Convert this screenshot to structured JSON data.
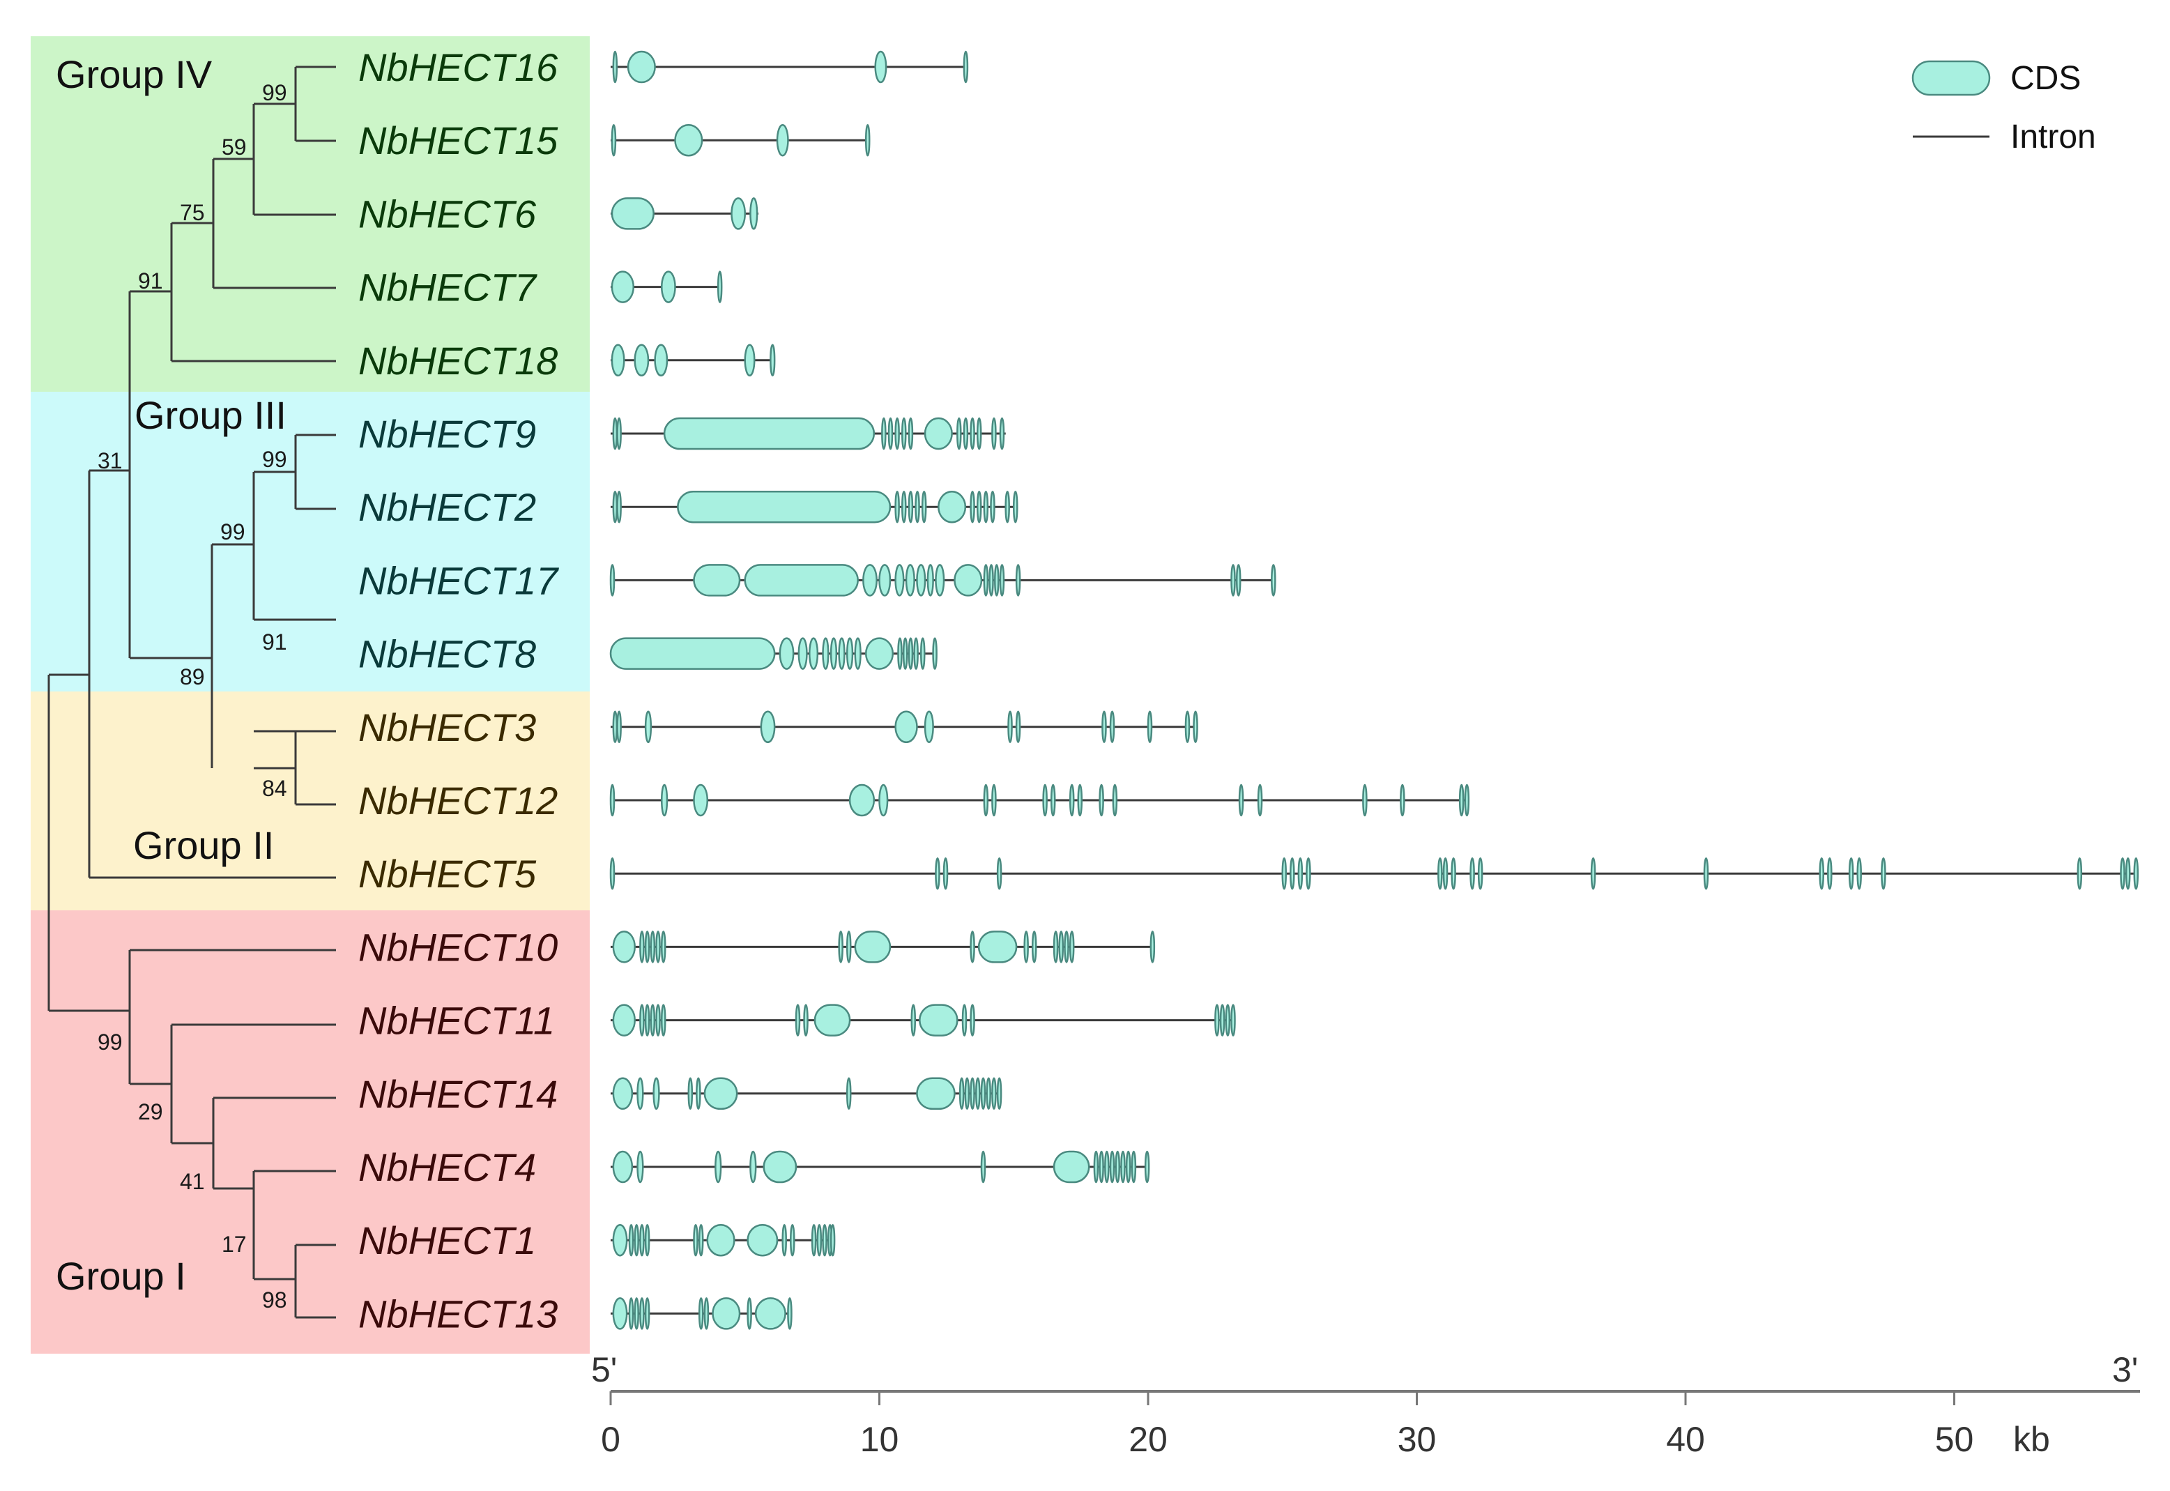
{
  "groups": [
    {
      "label": "Group IV",
      "color": "#ccf5c8",
      "text_color": "#0a3a0a"
    },
    {
      "label": "Group III",
      "color": "#ccfafa",
      "text_color": "#0a3a3a"
    },
    {
      "label": "Group II",
      "color": "#fdf2cc",
      "text_color": "#3a2a00"
    },
    {
      "label": "Group I",
      "color": "#fcc8c8",
      "text_color": "#3a0a0a"
    }
  ],
  "genes": [
    {
      "name": "NbHECT16",
      "group": 0,
      "length": 13.3,
      "cds": [
        [
          0.1,
          0.15
        ],
        [
          0.65,
          1.65
        ],
        [
          9.85,
          10.25
        ],
        [
          13.15,
          13.25
        ]
      ]
    },
    {
      "name": "NbHECT15",
      "group": 0,
      "length": 9.6,
      "cds": [
        [
          0.05,
          0.15
        ],
        [
          2.4,
          3.4
        ],
        [
          6.2,
          6.6
        ],
        [
          9.5,
          9.6
        ]
      ]
    },
    {
      "name": "NbHECT6",
      "group": 0,
      "length": 5.5,
      "cds": [
        [
          0.05,
          1.6
        ],
        [
          4.5,
          5.0
        ],
        [
          5.2,
          5.45
        ]
      ]
    },
    {
      "name": "NbHECT7",
      "group": 0,
      "length": 4.1,
      "cds": [
        [
          0.05,
          0.85
        ],
        [
          1.9,
          2.4
        ],
        [
          4.0,
          4.1
        ]
      ]
    },
    {
      "name": "NbHECT18",
      "group": 0,
      "length": 6.1,
      "cds": [
        [
          0.05,
          0.5
        ],
        [
          0.9,
          1.4
        ],
        [
          1.65,
          2.1
        ],
        [
          5.0,
          5.35
        ],
        [
          5.95,
          6.1
        ]
      ]
    },
    {
      "name": "NbHECT9",
      "group": 1,
      "length": 14.7,
      "cds": [
        [
          0.1,
          0.2
        ],
        [
          0.25,
          0.35
        ],
        [
          2.0,
          9.8
        ],
        [
          10.1,
          10.2
        ],
        [
          10.35,
          10.45
        ],
        [
          10.6,
          10.7
        ],
        [
          10.85,
          10.95
        ],
        [
          11.1,
          11.2
        ],
        [
          11.7,
          12.7
        ],
        [
          12.9,
          13.0
        ],
        [
          13.15,
          13.25
        ],
        [
          13.4,
          13.5
        ],
        [
          13.65,
          13.75
        ],
        [
          14.2,
          14.3
        ],
        [
          14.5,
          14.6
        ]
      ]
    },
    {
      "name": "NbHECT2",
      "group": 1,
      "length": 15.1,
      "cds": [
        [
          0.1,
          0.2
        ],
        [
          0.25,
          0.35
        ],
        [
          2.5,
          10.4
        ],
        [
          10.6,
          10.7
        ],
        [
          10.85,
          10.95
        ],
        [
          11.1,
          11.2
        ],
        [
          11.35,
          11.45
        ],
        [
          11.6,
          11.7
        ],
        [
          12.2,
          13.2
        ],
        [
          13.4,
          13.5
        ],
        [
          13.65,
          13.75
        ],
        [
          13.9,
          14.0
        ],
        [
          14.15,
          14.25
        ],
        [
          14.7,
          14.8
        ],
        [
          15.0,
          15.1
        ]
      ]
    },
    {
      "name": "NbHECT17",
      "group": 1,
      "length": 24.7,
      "cds": [
        [
          0.0,
          0.1
        ],
        [
          3.1,
          4.8
        ],
        [
          5.0,
          9.2
        ],
        [
          9.4,
          9.9
        ],
        [
          10.0,
          10.4
        ],
        [
          10.6,
          10.9
        ],
        [
          11.0,
          11.3
        ],
        [
          11.4,
          11.7
        ],
        [
          11.8,
          12.0
        ],
        [
          12.1,
          12.4
        ],
        [
          12.8,
          13.8
        ],
        [
          13.9,
          14.0
        ],
        [
          14.1,
          14.2
        ],
        [
          14.3,
          14.4
        ],
        [
          14.5,
          14.6
        ],
        [
          15.1,
          15.2
        ],
        [
          23.1,
          23.2
        ],
        [
          23.3,
          23.4
        ],
        [
          24.6,
          24.7
        ]
      ]
    },
    {
      "name": "NbHECT8",
      "group": 1,
      "length": 12.1,
      "cds": [
        [
          0.0,
          6.1
        ],
        [
          6.3,
          6.8
        ],
        [
          7.0,
          7.3
        ],
        [
          7.4,
          7.7
        ],
        [
          7.9,
          8.1
        ],
        [
          8.2,
          8.4
        ],
        [
          8.5,
          8.7
        ],
        [
          8.8,
          9.0
        ],
        [
          9.1,
          9.3
        ],
        [
          9.5,
          10.5
        ],
        [
          10.7,
          10.8
        ],
        [
          10.9,
          11.0
        ],
        [
          11.1,
          11.2
        ],
        [
          11.3,
          11.4
        ],
        [
          11.55,
          11.65
        ],
        [
          12.0,
          12.1
        ]
      ]
    },
    {
      "name": "NbHECT3",
      "group": 2,
      "length": 21.8,
      "cds": [
        [
          0.1,
          0.2
        ],
        [
          0.25,
          0.35
        ],
        [
          1.3,
          1.5
        ],
        [
          5.6,
          6.1
        ],
        [
          10.6,
          11.4
        ],
        [
          11.7,
          12.0
        ],
        [
          14.8,
          14.9
        ],
        [
          15.1,
          15.2
        ],
        [
          18.3,
          18.4
        ],
        [
          18.6,
          18.7
        ],
        [
          20.0,
          20.1
        ],
        [
          21.4,
          21.5
        ],
        [
          21.7,
          21.8
        ]
      ]
    },
    {
      "name": "NbHECT12",
      "group": 2,
      "length": 31.9,
      "cds": [
        [
          0.0,
          0.1
        ],
        [
          1.9,
          2.1
        ],
        [
          3.1,
          3.6
        ],
        [
          8.9,
          9.8
        ],
        [
          10.0,
          10.3
        ],
        [
          13.9,
          14.0
        ],
        [
          14.2,
          14.3
        ],
        [
          16.1,
          16.2
        ],
        [
          16.4,
          16.5
        ],
        [
          17.1,
          17.2
        ],
        [
          17.4,
          17.5
        ],
        [
          18.2,
          18.3
        ],
        [
          18.7,
          18.8
        ],
        [
          23.4,
          23.5
        ],
        [
          24.1,
          24.2
        ],
        [
          28.0,
          28.1
        ],
        [
          29.4,
          29.5
        ],
        [
          31.6,
          31.7
        ],
        [
          31.8,
          31.9
        ]
      ]
    },
    {
      "name": "NbHECT5",
      "group": 2,
      "length": 56.8,
      "cds": [
        [
          0.0,
          0.1
        ],
        [
          12.1,
          12.2
        ],
        [
          12.4,
          12.5
        ],
        [
          14.4,
          14.5
        ],
        [
          25.0,
          25.1
        ],
        [
          25.3,
          25.4
        ],
        [
          25.6,
          25.7
        ],
        [
          25.9,
          26.0
        ],
        [
          30.8,
          30.9
        ],
        [
          31.0,
          31.1
        ],
        [
          31.3,
          31.4
        ],
        [
          32.0,
          32.1
        ],
        [
          32.3,
          32.4
        ],
        [
          36.5,
          36.6
        ],
        [
          40.7,
          40.8
        ],
        [
          45.0,
          45.1
        ],
        [
          45.3,
          45.4
        ],
        [
          46.1,
          46.2
        ],
        [
          46.4,
          46.5
        ],
        [
          47.3,
          47.4
        ],
        [
          54.6,
          54.7
        ],
        [
          56.2,
          56.3
        ],
        [
          56.4,
          56.5
        ],
        [
          56.7,
          56.8
        ]
      ]
    },
    {
      "name": "NbHECT10",
      "group": 3,
      "length": 20.2,
      "cds": [
        [
          0.1,
          0.9
        ],
        [
          1.1,
          1.2
        ],
        [
          1.3,
          1.4
        ],
        [
          1.5,
          1.6
        ],
        [
          1.7,
          1.8
        ],
        [
          1.9,
          2.0
        ],
        [
          8.5,
          8.6
        ],
        [
          8.8,
          8.9
        ],
        [
          9.1,
          10.4
        ],
        [
          13.4,
          13.5
        ],
        [
          13.7,
          15.1
        ],
        [
          15.4,
          15.5
        ],
        [
          15.7,
          15.8
        ],
        [
          16.5,
          16.6
        ],
        [
          16.7,
          16.8
        ],
        [
          16.9,
          17.0
        ],
        [
          17.1,
          17.2
        ],
        [
          20.1,
          20.2
        ]
      ]
    },
    {
      "name": "NbHECT11",
      "group": 3,
      "length": 23.2,
      "cds": [
        [
          0.1,
          0.9
        ],
        [
          1.1,
          1.2
        ],
        [
          1.3,
          1.4
        ],
        [
          1.5,
          1.6
        ],
        [
          1.7,
          1.8
        ],
        [
          1.9,
          2.0
        ],
        [
          6.9,
          7.0
        ],
        [
          7.2,
          7.3
        ],
        [
          7.6,
          8.9
        ],
        [
          11.2,
          11.3
        ],
        [
          11.5,
          12.9
        ],
        [
          13.1,
          13.2
        ],
        [
          13.4,
          13.5
        ],
        [
          22.5,
          22.6
        ],
        [
          22.7,
          22.8
        ],
        [
          22.9,
          23.0
        ],
        [
          23.1,
          23.2
        ]
      ]
    },
    {
      "name": "NbHECT14",
      "group": 3,
      "length": 14.5,
      "cds": [
        [
          0.1,
          0.8
        ],
        [
          1.0,
          1.2
        ],
        [
          1.6,
          1.8
        ],
        [
          2.9,
          3.0
        ],
        [
          3.2,
          3.3
        ],
        [
          3.5,
          4.7
        ],
        [
          8.8,
          8.9
        ],
        [
          11.4,
          12.8
        ],
        [
          13.0,
          13.1
        ],
        [
          13.2,
          13.3
        ],
        [
          13.4,
          13.5
        ],
        [
          13.6,
          13.7
        ],
        [
          13.8,
          13.9
        ],
        [
          14.0,
          14.1
        ],
        [
          14.2,
          14.3
        ],
        [
          14.4,
          14.5
        ]
      ]
    },
    {
      "name": "NbHECT4",
      "group": 3,
      "length": 20.0,
      "cds": [
        [
          0.1,
          0.8
        ],
        [
          1.0,
          1.2
        ],
        [
          3.9,
          4.1
        ],
        [
          5.2,
          5.4
        ],
        [
          5.7,
          6.9
        ],
        [
          13.8,
          13.9
        ],
        [
          16.5,
          17.8
        ],
        [
          18.0,
          18.1
        ],
        [
          18.2,
          18.3
        ],
        [
          18.4,
          18.5
        ],
        [
          18.6,
          18.7
        ],
        [
          18.8,
          18.9
        ],
        [
          19.0,
          19.1
        ],
        [
          19.2,
          19.3
        ],
        [
          19.4,
          19.5
        ],
        [
          19.9,
          20.0
        ]
      ]
    },
    {
      "name": "NbHECT1",
      "group": 3,
      "length": 8.3,
      "cds": [
        [
          0.1,
          0.6
        ],
        [
          0.7,
          0.8
        ],
        [
          0.9,
          1.0
        ],
        [
          1.1,
          1.2
        ],
        [
          1.3,
          1.4
        ],
        [
          3.1,
          3.2
        ],
        [
          3.3,
          3.4
        ],
        [
          3.6,
          4.6
        ],
        [
          5.1,
          6.2
        ],
        [
          6.4,
          6.5
        ],
        [
          6.7,
          6.8
        ],
        [
          7.5,
          7.6
        ],
        [
          7.7,
          7.8
        ],
        [
          7.9,
          8.0
        ],
        [
          8.1,
          8.2
        ],
        [
          8.2,
          8.3
        ]
      ]
    },
    {
      "name": "NbHECT13",
      "group": 3,
      "length": 6.7,
      "cds": [
        [
          0.1,
          0.6
        ],
        [
          0.7,
          0.8
        ],
        [
          0.9,
          1.0
        ],
        [
          1.1,
          1.2
        ],
        [
          1.3,
          1.4
        ],
        [
          3.3,
          3.4
        ],
        [
          3.5,
          3.6
        ],
        [
          3.8,
          4.8
        ],
        [
          5.1,
          5.2
        ],
        [
          5.4,
          6.5
        ],
        [
          6.6,
          6.7
        ]
      ]
    }
  ],
  "bootstrap": [
    "99",
    "59",
    "75",
    "91",
    "99",
    "31",
    "99",
    "91",
    "89",
    "84",
    "99",
    "29",
    "41",
    "17",
    "98"
  ],
  "axis": {
    "ticks": [
      "0",
      "10",
      "20",
      "30",
      "40",
      "50"
    ],
    "tick_values": [
      0,
      10,
      20,
      30,
      40,
      50
    ],
    "max_kb": 57,
    "unit": "kb",
    "five_prime": "5'",
    "three_prime": "3'"
  },
  "legend": {
    "cds_label": "CDS",
    "intron_label": "Intron"
  },
  "colors": {
    "cds_fill": "#a8f0e0",
    "cds_stroke": "#4a8a80",
    "line": "#3a3a3a"
  }
}
